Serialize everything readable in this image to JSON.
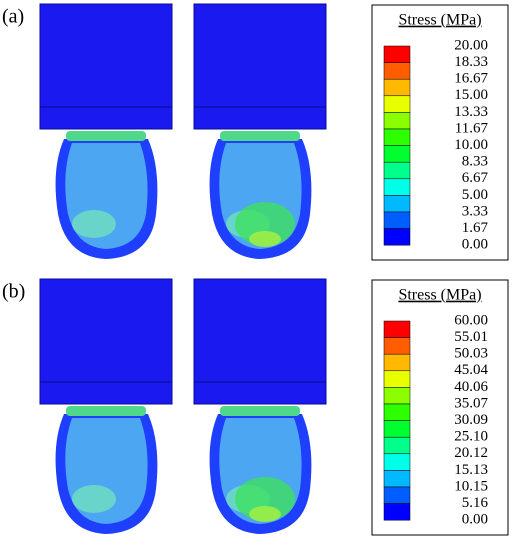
{
  "panels": [
    {
      "label": "(a)",
      "legend": {
        "title": "Stress (MPa)",
        "labels": [
          "20.00",
          "18.33",
          "16.67",
          "15.00",
          "13.33",
          "11.67",
          "10.00",
          "8.33",
          "6.67",
          "5.00",
          "3.33",
          "1.67",
          "0.00"
        ],
        "colors": [
          "#ff0000",
          "#ff5d00",
          "#ffb900",
          "#e8ff00",
          "#8bff00",
          "#2eff00",
          "#00ff2e",
          "#00ff8b",
          "#00ffe8",
          "#00b9ff",
          "#005dff",
          "#0000ff"
        ]
      }
    },
    {
      "label": "(b)",
      "legend": {
        "title": "Stress (MPa)",
        "labels": [
          "60.00",
          "55.01",
          "50.03",
          "45.04",
          "40.06",
          "35.07",
          "30.09",
          "25.10",
          "20.12",
          "15.13",
          "10.15",
          "5.16",
          "0.00"
        ],
        "colors": [
          "#ff0000",
          "#ff5d00",
          "#ffb900",
          "#e8ff00",
          "#8bff00",
          "#2eff00",
          "#00ff2e",
          "#00ff8b",
          "#00ffe8",
          "#00b9ff",
          "#005dff",
          "#0000ff"
        ]
      }
    }
  ]
}
